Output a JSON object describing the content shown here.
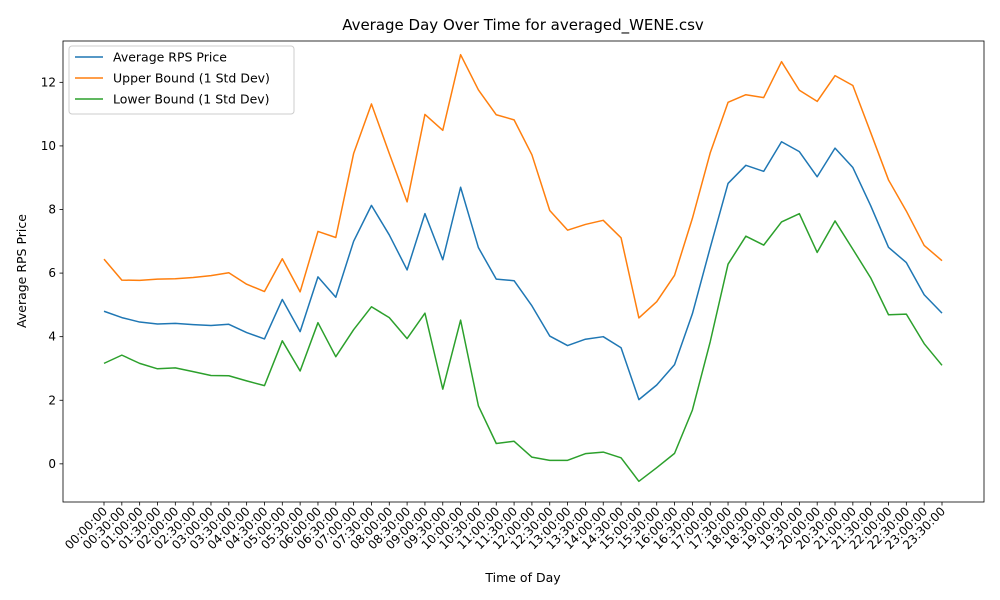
{
  "chart_data": {
    "type": "line",
    "title": "Average Day Over Time for averaged_WENE.csv",
    "xlabel": "Time of Day",
    "ylabel": "Average RPS Price",
    "ylim": [
      -1.2,
      13.3
    ],
    "yticks": [
      0,
      2,
      4,
      6,
      8,
      10,
      12
    ],
    "grid": false,
    "legend_position": "top-left",
    "categories": [
      "00:00:00",
      "00:30:00",
      "01:00:00",
      "01:30:00",
      "02:00:00",
      "02:30:00",
      "03:00:00",
      "03:30:00",
      "04:00:00",
      "04:30:00",
      "05:00:00",
      "05:30:00",
      "06:00:00",
      "06:30:00",
      "07:00:00",
      "07:30:00",
      "08:00:00",
      "08:30:00",
      "09:00:00",
      "09:30:00",
      "10:00:00",
      "10:30:00",
      "11:00:00",
      "11:30:00",
      "12:00:00",
      "12:30:00",
      "13:00:00",
      "13:30:00",
      "14:00:00",
      "14:30:00",
      "15:00:00",
      "15:30:00",
      "16:00:00",
      "16:30:00",
      "17:00:00",
      "17:30:00",
      "18:00:00",
      "18:30:00",
      "19:00:00",
      "19:30:00",
      "20:00:00",
      "20:30:00",
      "21:00:00",
      "21:30:00",
      "22:00:00",
      "22:30:00",
      "23:00:00",
      "23:30:00"
    ],
    "series": [
      {
        "name": "Average RPS Price",
        "color": "#1f77b4",
        "values": [
          4.8,
          4.6,
          4.46,
          4.4,
          4.42,
          4.38,
          4.35,
          4.39,
          4.13,
          3.93,
          5.17,
          4.16,
          5.88,
          5.24,
          7.0,
          8.13,
          7.2,
          6.1,
          7.87,
          6.42,
          8.7,
          6.8,
          5.81,
          5.76,
          4.97,
          4.02,
          3.72,
          3.92,
          4.0,
          3.65,
          2.02,
          2.48,
          3.12,
          4.72,
          6.8,
          8.82,
          9.39,
          9.2,
          10.13,
          9.82,
          9.03,
          9.93,
          9.32,
          8.12,
          6.81,
          6.33,
          5.32,
          4.74
        ]
      },
      {
        "name": "Upper Bound (1 Std Dev)",
        "color": "#ff7f0e",
        "values": [
          6.44,
          5.78,
          5.77,
          5.81,
          5.82,
          5.86,
          5.92,
          6.01,
          5.65,
          5.42,
          6.45,
          5.41,
          7.31,
          7.12,
          9.76,
          11.32,
          9.76,
          8.24,
          10.99,
          10.49,
          12.87,
          11.76,
          10.98,
          10.82,
          9.72,
          7.97,
          7.35,
          7.53,
          7.66,
          7.11,
          4.59,
          5.1,
          5.93,
          7.72,
          9.78,
          11.37,
          11.61,
          11.52,
          12.65,
          11.75,
          11.4,
          12.21,
          11.9,
          10.42,
          8.93,
          7.95,
          6.87,
          6.39
        ]
      },
      {
        "name": "Lower Bound (1 Std Dev)",
        "color": "#2ca02c",
        "values": [
          3.16,
          3.42,
          3.16,
          2.99,
          3.02,
          2.9,
          2.78,
          2.77,
          2.61,
          2.46,
          3.87,
          2.92,
          4.44,
          3.37,
          4.22,
          4.94,
          4.6,
          3.94,
          4.74,
          2.35,
          4.52,
          1.82,
          0.64,
          0.71,
          0.21,
          0.11,
          0.11,
          0.32,
          0.37,
          0.19,
          -0.55,
          -0.12,
          0.33,
          1.69,
          3.84,
          6.28,
          7.16,
          6.88,
          7.61,
          7.87,
          6.65,
          7.64,
          6.75,
          5.85,
          4.69,
          4.71,
          3.78,
          3.1
        ]
      }
    ]
  }
}
